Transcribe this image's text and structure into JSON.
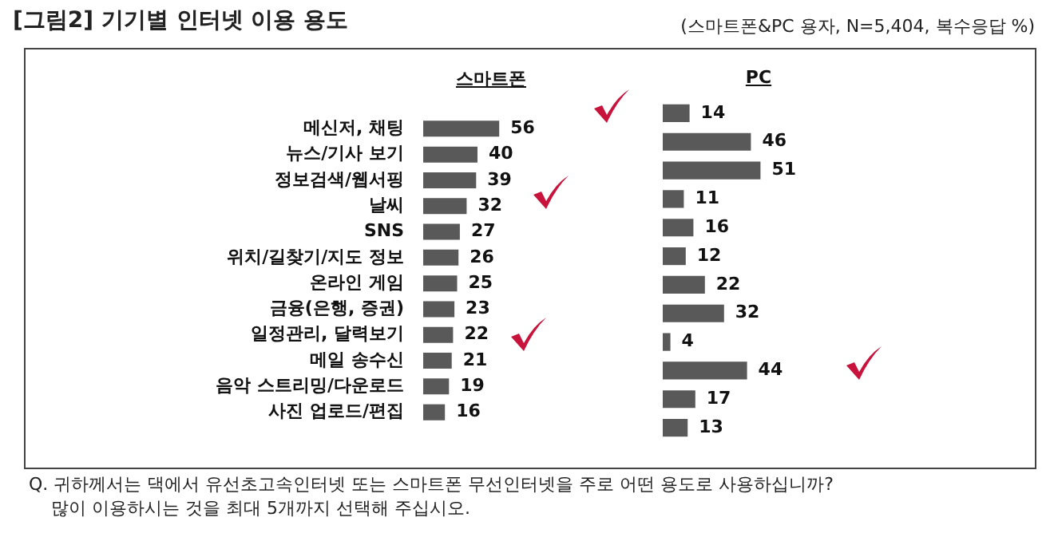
{
  "chart_data": [
    {
      "type": "bar",
      "title": "[그림2] 기기별 인터넷 이용 용도",
      "annotations": [
        "Q. 귀하께서는 댁에서 유선초고속인터넷 또는 스마트폰 무선인터넷을 주로 어떤 용도로 사용하십니까?",
        "많이 이용하시는 것을 최대 5개까지 선택해 주십시오."
      ],
      "orientation": "horizontal",
      "categories": [
        "메신저, 채팅",
        "뉴스/기사 보기",
        "정보검색/웹서핑",
        "날씨",
        "SNS",
        "위치/길찾기/지도 정보",
        "온라인 게임",
        "금융(은행, 증권)",
        "일정관리, 달력보기",
        "메일 송수신",
        "음악 스트리밍/다운로드",
        "사진 업로드/편집"
      ],
      "series": [
        {
          "name": "스마트폰",
          "color": "#595959",
          "values": [
            56,
            40,
            39,
            32,
            27,
            26,
            25,
            23,
            22,
            21,
            19,
            16
          ]
        }
      ],
      "data_labels": true,
      "tick_labels": "y"
    },
    {
      "type": "bar",
      "subtitle": "(스마트폰&PC 용자, N=5,404, 복수응답 %)",
      "orientation": "horizontal",
      "categories": [
        null,
        null,
        null,
        null,
        null,
        null,
        null,
        null,
        null,
        null,
        null,
        null
      ],
      "series": [
        {
          "name": "PC",
          "color": "#595959",
          "values": [
            14,
            46,
            51,
            11,
            16,
            12,
            22,
            32,
            4,
            44,
            17,
            13
          ]
        }
      ],
      "data_labels": true,
      "tick_labels": false
    }
  ]
}
